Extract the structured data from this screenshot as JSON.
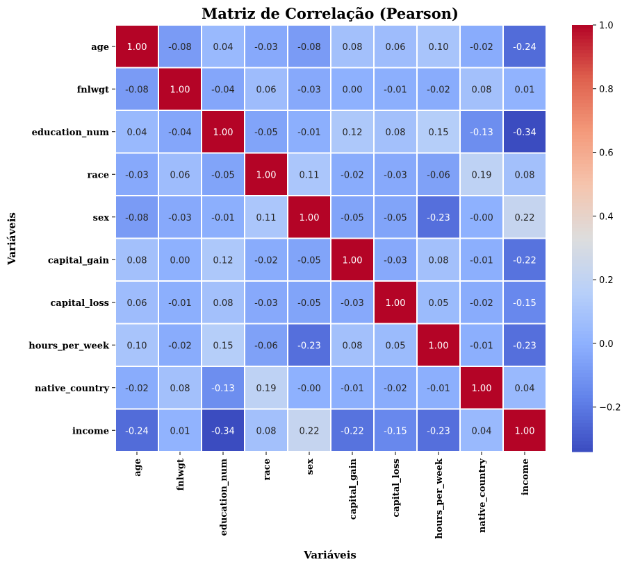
{
  "chart_data": {
    "type": "heatmap",
    "title": "Matriz de Correlação (Pearson)",
    "xlabel": "Variáveis",
    "ylabel": "Variáveis",
    "variables": [
      "age",
      "fnlwgt",
      "education_num",
      "race",
      "sex",
      "capital_gain",
      "capital_loss",
      "hours_per_week",
      "native_country",
      "income"
    ],
    "value_format": "2 decimals",
    "colormap": "coolwarm",
    "color_range": [
      -0.34,
      1.0
    ],
    "colorbar_ticks": [
      1.0,
      0.8,
      0.6,
      0.4,
      0.2,
      0.0,
      -0.2
    ],
    "colorbar_tick_labels": [
      "1.0",
      "0.8",
      "0.6",
      "0.4",
      "0.2",
      "0.0",
      "−0.2"
    ],
    "values": [
      [
        1.0,
        -0.08,
        0.04,
        -0.03,
        -0.08,
        0.08,
        0.06,
        0.1,
        -0.02,
        -0.24
      ],
      [
        -0.08,
        1.0,
        -0.04,
        0.06,
        -0.03,
        0.0,
        -0.01,
        -0.02,
        0.08,
        0.01
      ],
      [
        0.04,
        -0.04,
        1.0,
        -0.05,
        -0.01,
        0.12,
        0.08,
        0.15,
        -0.13,
        -0.34
      ],
      [
        -0.03,
        0.06,
        -0.05,
        1.0,
        0.11,
        -0.02,
        -0.03,
        -0.06,
        0.19,
        0.08
      ],
      [
        -0.08,
        -0.03,
        -0.01,
        0.11,
        1.0,
        -0.05,
        -0.05,
        -0.23,
        -0.0,
        0.22
      ],
      [
        0.08,
        0.0,
        0.12,
        -0.02,
        -0.05,
        1.0,
        -0.03,
        0.08,
        -0.01,
        -0.22
      ],
      [
        0.06,
        -0.01,
        0.08,
        -0.03,
        -0.05,
        -0.03,
        1.0,
        0.05,
        -0.02,
        -0.15
      ],
      [
        0.1,
        -0.02,
        0.15,
        -0.06,
        -0.23,
        0.08,
        0.05,
        1.0,
        -0.01,
        -0.23
      ],
      [
        -0.02,
        0.08,
        -0.13,
        0.19,
        -0.0,
        -0.01,
        -0.02,
        -0.01,
        1.0,
        0.04
      ],
      [
        -0.24,
        0.01,
        -0.34,
        0.08,
        0.22,
        -0.22,
        -0.15,
        -0.23,
        0.04,
        1.0
      ]
    ],
    "cell_labels": [
      [
        "1.00",
        "-0.08",
        "0.04",
        "-0.03",
        "-0.08",
        "0.08",
        "0.06",
        "0.10",
        "-0.02",
        "-0.24"
      ],
      [
        "-0.08",
        "1.00",
        "-0.04",
        "0.06",
        "-0.03",
        "0.00",
        "-0.01",
        "-0.02",
        "0.08",
        "0.01"
      ],
      [
        "0.04",
        "-0.04",
        "1.00",
        "-0.05",
        "-0.01",
        "0.12",
        "0.08",
        "0.15",
        "-0.13",
        "-0.34"
      ],
      [
        "-0.03",
        "0.06",
        "-0.05",
        "1.00",
        "0.11",
        "-0.02",
        "-0.03",
        "-0.06",
        "0.19",
        "0.08"
      ],
      [
        "-0.08",
        "-0.03",
        "-0.01",
        "0.11",
        "1.00",
        "-0.05",
        "-0.05",
        "-0.23",
        "-0.00",
        "0.22"
      ],
      [
        "0.08",
        "0.00",
        "0.12",
        "-0.02",
        "-0.05",
        "1.00",
        "-0.03",
        "0.08",
        "-0.01",
        "-0.22"
      ],
      [
        "0.06",
        "-0.01",
        "0.08",
        "-0.03",
        "-0.05",
        "-0.03",
        "1.00",
        "0.05",
        "-0.02",
        "-0.15"
      ],
      [
        "0.10",
        "-0.02",
        "0.15",
        "-0.06",
        "-0.23",
        "0.08",
        "0.05",
        "1.00",
        "-0.01",
        "-0.23"
      ],
      [
        "-0.02",
        "0.08",
        "-0.13",
        "0.19",
        "-0.00",
        "-0.01",
        "-0.02",
        "-0.01",
        "1.00",
        "0.04"
      ],
      [
        "-0.24",
        "0.01",
        "-0.34",
        "0.08",
        "0.22",
        "-0.22",
        "-0.15",
        "-0.23",
        "0.04",
        "1.00"
      ]
    ],
    "legend": "colorbar right",
    "grid": false
  }
}
